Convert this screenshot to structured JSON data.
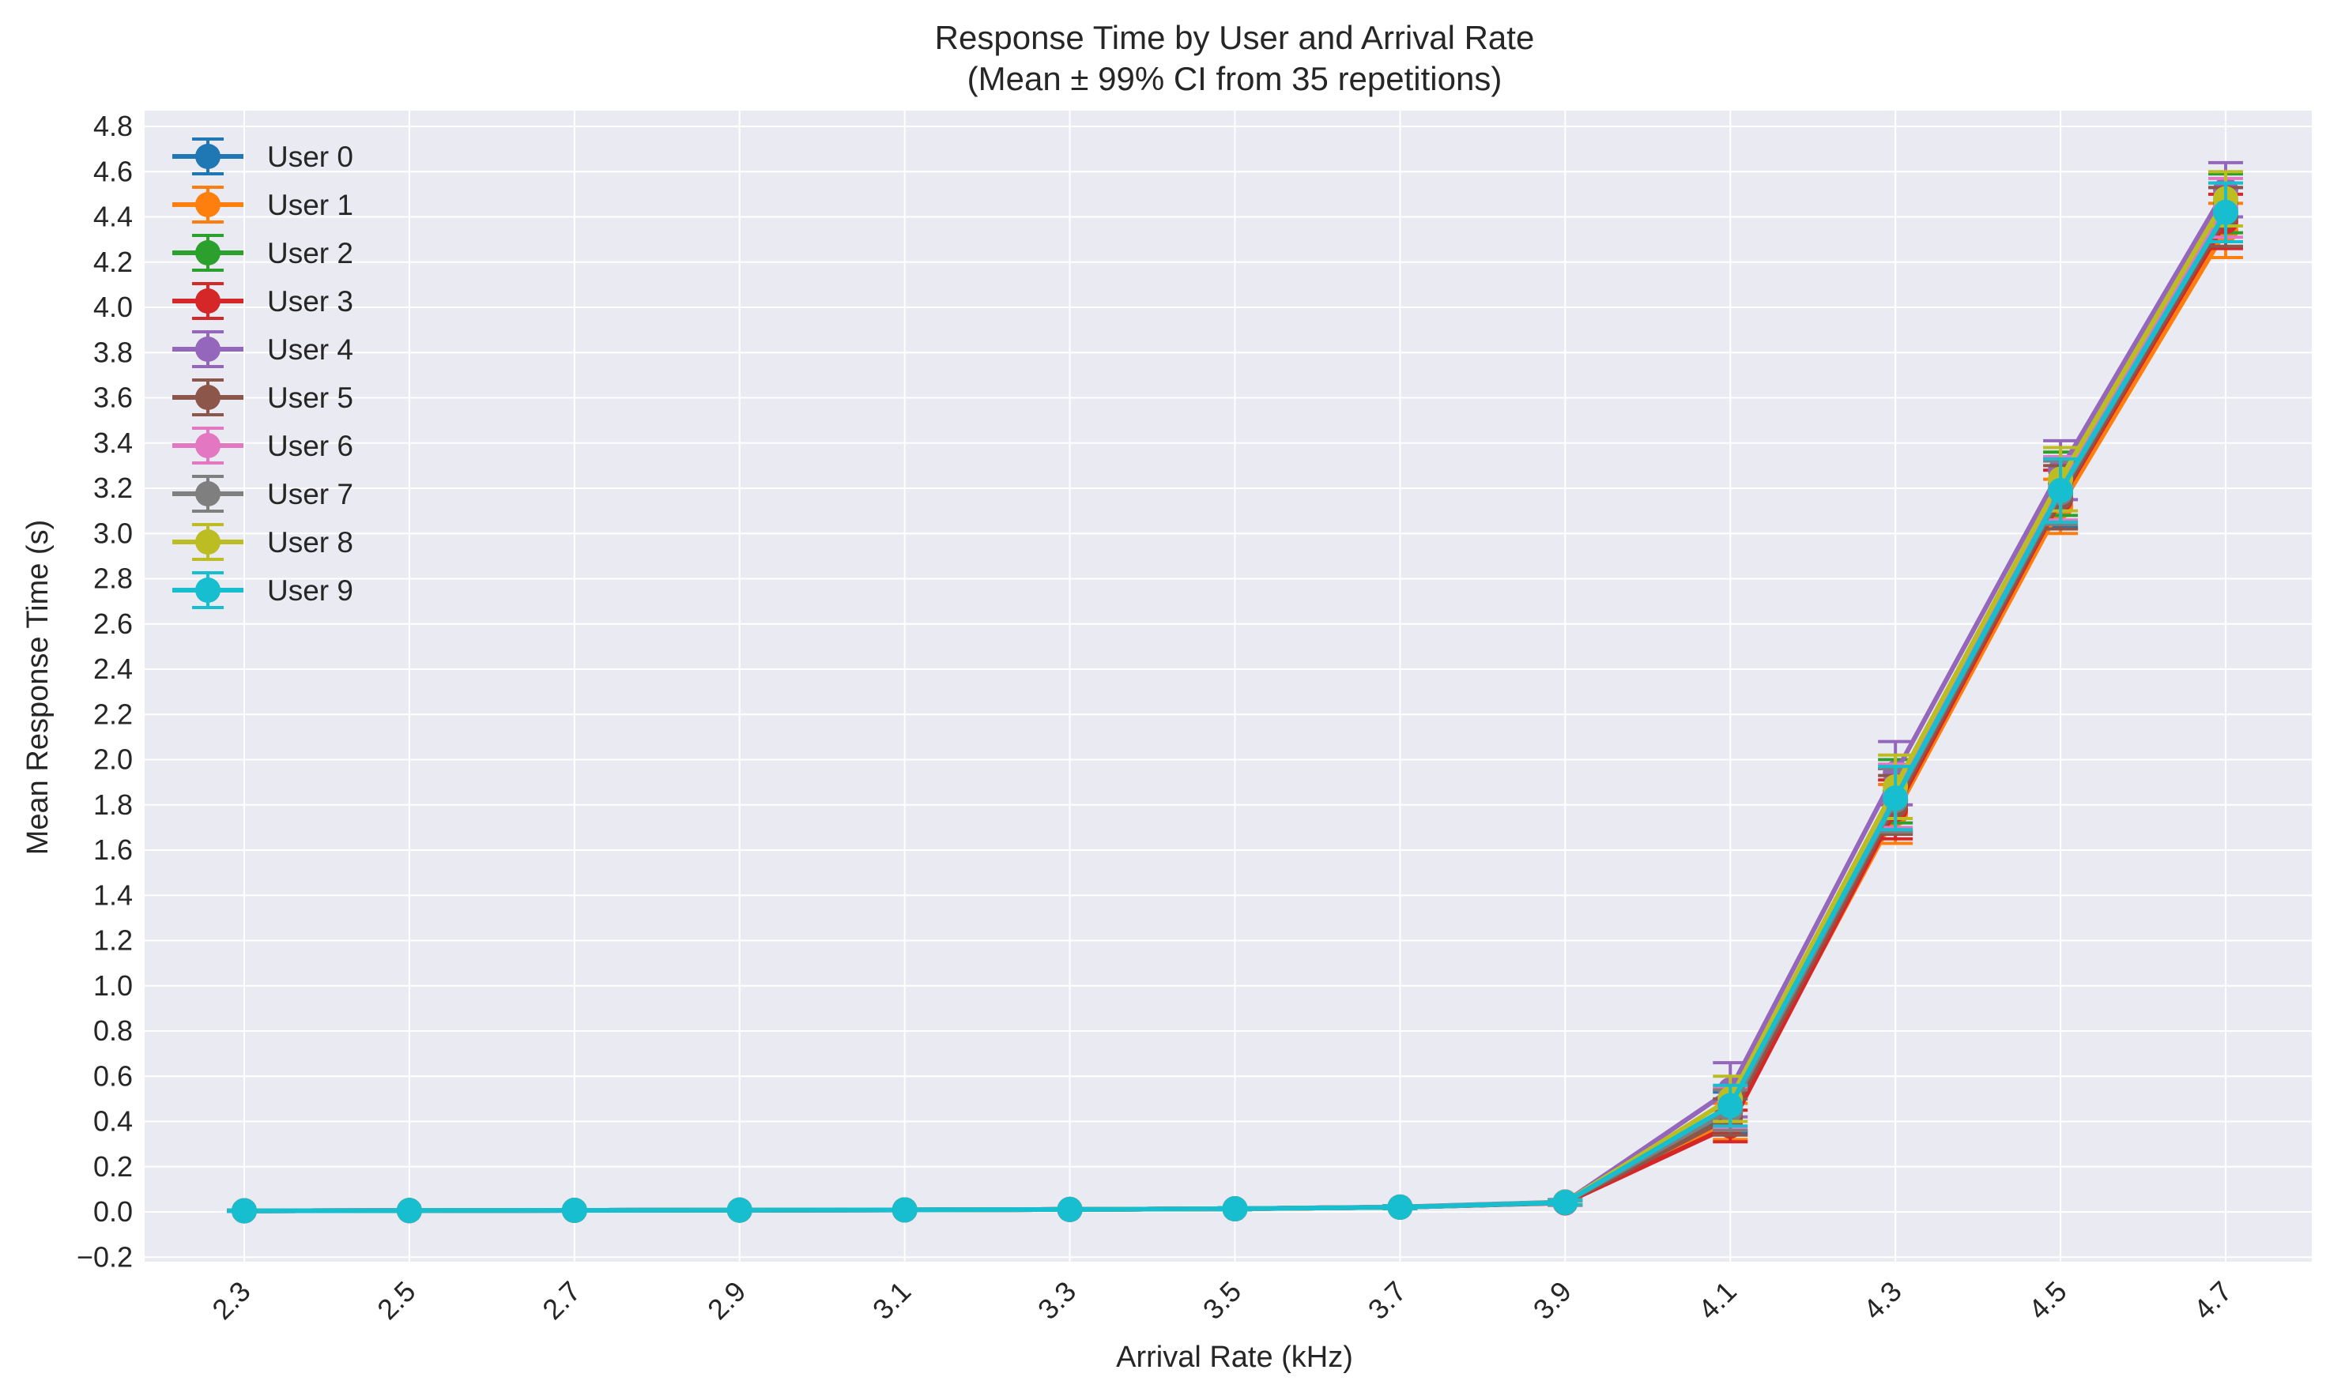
{
  "chart_data": {
    "type": "line",
    "title": "Response Time by User and Arrival Rate",
    "subtitle": "(Mean ± 99% CI from 35 repetitions)",
    "xlabel": "Arrival Rate (kHz)",
    "ylabel": "Mean Response Time (s)",
    "x": [
      2.3,
      2.5,
      2.7,
      2.9,
      3.1,
      3.3,
      3.5,
      3.7,
      3.9,
      4.1,
      4.3,
      4.5,
      4.7
    ],
    "x_tick_labels": [
      "2.3",
      "2.5",
      "2.7",
      "2.9",
      "3.1",
      "3.3",
      "3.5",
      "3.7",
      "3.9",
      "4.1",
      "4.3",
      "4.5",
      "4.7"
    ],
    "ylim": [
      -0.22,
      4.87
    ],
    "y_ticks": [
      -0.2,
      0.0,
      0.2,
      0.4,
      0.6,
      0.8,
      1.0,
      1.2,
      1.4,
      1.6,
      1.8,
      2.0,
      2.2,
      2.4,
      2.6,
      2.8,
      3.0,
      3.2,
      3.4,
      3.6,
      3.8,
      4.0,
      4.2,
      4.4,
      4.6,
      4.8
    ],
    "y_tick_labels": [
      "−0.2",
      "0.0",
      "0.2",
      "0.4",
      "0.6",
      "0.8",
      "1.0",
      "1.2",
      "1.4",
      "1.6",
      "1.8",
      "2.0",
      "2.2",
      "2.4",
      "2.6",
      "2.8",
      "3.0",
      "3.2",
      "3.4",
      "3.6",
      "3.8",
      "4.0",
      "4.2",
      "4.4",
      "4.6",
      "4.8"
    ],
    "grid": true,
    "legend_position": "top-left",
    "series": [
      {
        "name": "User 0",
        "color": "#1f77b4",
        "values": [
          0.005,
          0.006,
          0.007,
          0.008,
          0.009,
          0.011,
          0.014,
          0.021,
          0.042,
          0.44,
          1.82,
          3.18,
          4.4
        ],
        "ci": [
          0.003,
          0.003,
          0.003,
          0.003,
          0.003,
          0.004,
          0.005,
          0.006,
          0.01,
          0.09,
          0.14,
          0.15,
          0.13
        ]
      },
      {
        "name": "User 1",
        "color": "#ff7f0e",
        "values": [
          0.005,
          0.006,
          0.007,
          0.008,
          0.009,
          0.011,
          0.014,
          0.021,
          0.041,
          0.4,
          1.76,
          3.12,
          4.34
        ],
        "ci": [
          0.003,
          0.003,
          0.003,
          0.003,
          0.003,
          0.004,
          0.005,
          0.006,
          0.01,
          0.08,
          0.13,
          0.12,
          0.12
        ]
      },
      {
        "name": "User 2",
        "color": "#2ca02c",
        "values": [
          0.005,
          0.006,
          0.007,
          0.008,
          0.009,
          0.011,
          0.014,
          0.021,
          0.042,
          0.45,
          1.86,
          3.22,
          4.46
        ],
        "ci": [
          0.003,
          0.003,
          0.003,
          0.003,
          0.003,
          0.004,
          0.005,
          0.006,
          0.01,
          0.09,
          0.14,
          0.14,
          0.13
        ]
      },
      {
        "name": "User 3",
        "color": "#d62728",
        "values": [
          0.005,
          0.006,
          0.007,
          0.008,
          0.009,
          0.011,
          0.014,
          0.021,
          0.04,
          0.38,
          1.78,
          3.15,
          4.38
        ],
        "ci": [
          0.003,
          0.003,
          0.003,
          0.003,
          0.003,
          0.004,
          0.005,
          0.006,
          0.01,
          0.07,
          0.13,
          0.13,
          0.12
        ]
      },
      {
        "name": "User 4",
        "color": "#9467bd",
        "values": [
          0.005,
          0.006,
          0.007,
          0.008,
          0.009,
          0.011,
          0.014,
          0.022,
          0.044,
          0.54,
          1.94,
          3.28,
          4.52
        ],
        "ci": [
          0.003,
          0.003,
          0.003,
          0.003,
          0.003,
          0.004,
          0.005,
          0.006,
          0.011,
          0.12,
          0.14,
          0.13,
          0.12
        ]
      },
      {
        "name": "User 5",
        "color": "#8c564b",
        "values": [
          0.005,
          0.006,
          0.007,
          0.008,
          0.009,
          0.011,
          0.014,
          0.021,
          0.041,
          0.42,
          1.8,
          3.16,
          4.4
        ],
        "ci": [
          0.003,
          0.003,
          0.003,
          0.003,
          0.003,
          0.004,
          0.005,
          0.006,
          0.01,
          0.08,
          0.13,
          0.14,
          0.13
        ]
      },
      {
        "name": "User 6",
        "color": "#e377c2",
        "values": [
          0.005,
          0.006,
          0.007,
          0.008,
          0.009,
          0.011,
          0.014,
          0.021,
          0.042,
          0.46,
          1.84,
          3.2,
          4.44
        ],
        "ci": [
          0.003,
          0.003,
          0.003,
          0.003,
          0.003,
          0.004,
          0.005,
          0.006,
          0.01,
          0.09,
          0.14,
          0.14,
          0.13
        ]
      },
      {
        "name": "User 7",
        "color": "#7f7f7f",
        "values": [
          0.005,
          0.006,
          0.007,
          0.008,
          0.009,
          0.011,
          0.014,
          0.021,
          0.042,
          0.45,
          1.82,
          3.18,
          4.42
        ],
        "ci": [
          0.003,
          0.003,
          0.003,
          0.003,
          0.003,
          0.004,
          0.005,
          0.006,
          0.01,
          0.09,
          0.14,
          0.14,
          0.13
        ]
      },
      {
        "name": "User 8",
        "color": "#bcbd22",
        "values": [
          0.005,
          0.006,
          0.007,
          0.008,
          0.009,
          0.011,
          0.014,
          0.021,
          0.043,
          0.5,
          1.88,
          3.24,
          4.48
        ],
        "ci": [
          0.003,
          0.003,
          0.003,
          0.003,
          0.003,
          0.004,
          0.005,
          0.006,
          0.01,
          0.1,
          0.14,
          0.14,
          0.12
        ]
      },
      {
        "name": "User 9",
        "color": "#17becf",
        "values": [
          0.005,
          0.006,
          0.007,
          0.008,
          0.009,
          0.011,
          0.014,
          0.021,
          0.042,
          0.47,
          1.83,
          3.19,
          4.42
        ],
        "ci": [
          0.003,
          0.003,
          0.003,
          0.003,
          0.003,
          0.004,
          0.005,
          0.006,
          0.01,
          0.09,
          0.14,
          0.14,
          0.13
        ]
      }
    ]
  },
  "colors": {
    "plot_background": "#eaeaf2",
    "page_background": "#ffffff",
    "grid": "#ffffff",
    "text": "#262626"
  }
}
